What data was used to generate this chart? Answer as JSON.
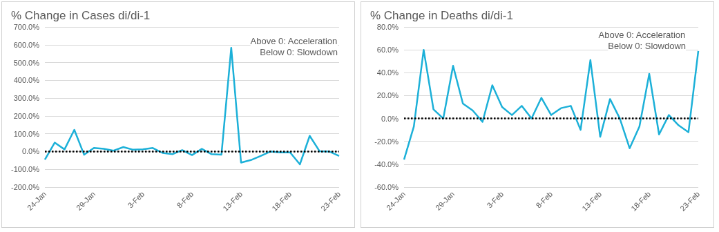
{
  "chart_data": [
    {
      "type": "line",
      "title": "% Change in Cases di/di-1",
      "categories": [
        "24-Jan",
        null,
        null,
        null,
        null,
        "29-Jan",
        null,
        null,
        null,
        null,
        "3-Feb",
        null,
        null,
        null,
        null,
        "8-Feb",
        null,
        null,
        null,
        null,
        "13-Feb",
        null,
        null,
        null,
        null,
        "18-Feb",
        null,
        null,
        null,
        null,
        "23-Feb"
      ],
      "series": [
        {
          "color": "#1cb0d8",
          "values": [
            -45,
            50,
            12,
            122,
            -18,
            20,
            15,
            5,
            25,
            10,
            12,
            20,
            -8,
            -15,
            8,
            -20,
            15,
            -15,
            -18,
            583,
            -62,
            -48,
            -25,
            0,
            -5,
            -5,
            -72,
            88,
            2,
            0,
            -25
          ]
        }
      ],
      "ylim": [
        -200,
        700
      ],
      "yticks": [
        {
          "value": -200,
          "label": "-200.0%"
        },
        {
          "value": -100,
          "label": "-100.0%"
        },
        {
          "value": 0,
          "label": "0.0%"
        },
        {
          "value": 100,
          "label": "100.0%"
        },
        {
          "value": 200,
          "label": "200.0%"
        },
        {
          "value": 300,
          "label": "300.0%"
        },
        {
          "value": 400,
          "label": "400.0%"
        },
        {
          "value": 500,
          "label": "500.0%"
        },
        {
          "value": 600,
          "label": "600.0%"
        },
        {
          "value": 700,
          "label": "700.0%"
        }
      ],
      "ref_lines": [
        {
          "axis": "y",
          "value": 0,
          "color": "#000000",
          "line_style": "dotted"
        }
      ],
      "annotations": [
        "Above 0: Acceleration",
        "Below 0: Slowdown"
      ],
      "grid": "y",
      "marker": "none",
      "line_style": "solid"
    },
    {
      "type": "line",
      "title": "% Change in Deaths di/di-1",
      "categories": [
        "24-Jan",
        null,
        null,
        null,
        null,
        "29-Jan",
        null,
        null,
        null,
        null,
        "3-Feb",
        null,
        null,
        null,
        null,
        "8-Feb",
        null,
        null,
        null,
        null,
        "13-Feb",
        null,
        null,
        null,
        null,
        "18-Feb",
        null,
        null,
        null,
        null,
        "23-Feb"
      ],
      "series": [
        {
          "color": "#1cb0d8",
          "values": [
            -36,
            -7,
            60,
            8,
            0,
            46,
            13,
            7,
            -3,
            29,
            10,
            3,
            11,
            0,
            18,
            3,
            9,
            11,
            -10,
            51,
            -16,
            17,
            0,
            -26,
            -7,
            39,
            -14,
            3,
            -6,
            -12,
            59
          ]
        }
      ],
      "ylim": [
        -60,
        80
      ],
      "yticks": [
        {
          "value": -60,
          "label": "-60.0%"
        },
        {
          "value": -40,
          "label": "-40.0%"
        },
        {
          "value": -20,
          "label": "-20.0%"
        },
        {
          "value": 0,
          "label": "0.0%"
        },
        {
          "value": 20,
          "label": "20.0%"
        },
        {
          "value": 40,
          "label": "40.0%"
        },
        {
          "value": 60,
          "label": "60.0%"
        },
        {
          "value": 80,
          "label": "80.0%"
        }
      ],
      "ref_lines": [
        {
          "axis": "y",
          "value": 0,
          "color": "#000000",
          "line_style": "dotted"
        }
      ],
      "annotations": [
        "Above 0: Acceleration",
        "Below 0: Slowdown"
      ],
      "grid": "y",
      "marker": "none",
      "line_style": "solid"
    }
  ]
}
